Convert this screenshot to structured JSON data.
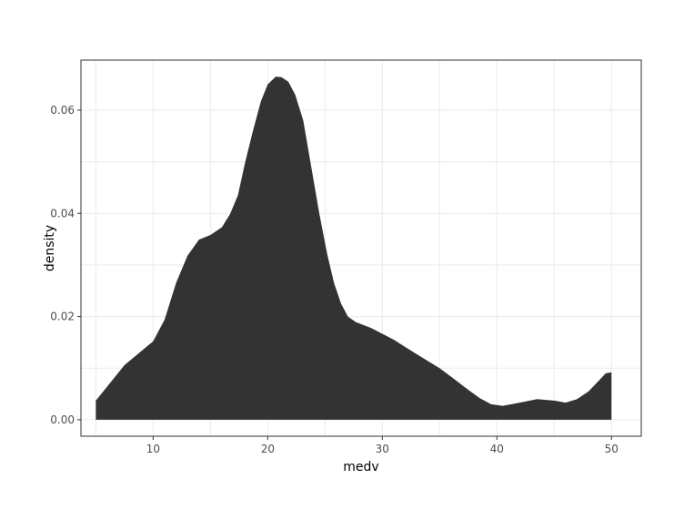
{
  "chart_data": {
    "type": "area",
    "title": "",
    "xlabel": "medv",
    "ylabel": "density",
    "xlim": [
      3.7,
      52.6
    ],
    "ylim": [
      -0.0032,
      0.0697
    ],
    "x_ticks": [
      10,
      20,
      30,
      40,
      50
    ],
    "x_tick_labels": [
      "10",
      "20",
      "30",
      "40",
      "50"
    ],
    "y_ticks": [
      0.0,
      0.02,
      0.04,
      0.06
    ],
    "y_tick_labels": [
      "0.00",
      "0.02",
      "0.04",
      "0.06"
    ],
    "grid": true,
    "legend": "none",
    "fill_color": "#333333",
    "series": [
      {
        "x": [
          5.0,
          7.5,
          10.0,
          11.0,
          12.0,
          13.0,
          14.0,
          15.0,
          16.0,
          16.7,
          17.4,
          18.0,
          18.7,
          19.4,
          20.0,
          20.7,
          21.2,
          21.8,
          22.4,
          23.1,
          23.8,
          24.5,
          25.2,
          25.8,
          26.4,
          27.0,
          27.7,
          29.0,
          31.0,
          33.0,
          35.0,
          36.2,
          37.5,
          38.5,
          39.5,
          40.5,
          42.0,
          43.5,
          45.0,
          46.0,
          47.0,
          48.0,
          49.0,
          49.5,
          50.0
        ],
        "y": [
          0.0037,
          0.0106,
          0.0152,
          0.0194,
          0.0265,
          0.0318,
          0.0349,
          0.0358,
          0.0373,
          0.0398,
          0.0435,
          0.0496,
          0.0559,
          0.0617,
          0.065,
          0.0665,
          0.0664,
          0.0655,
          0.063,
          0.058,
          0.049,
          0.04,
          0.032,
          0.0264,
          0.0225,
          0.02,
          0.0189,
          0.0178,
          0.0155,
          0.0127,
          0.01,
          0.008,
          0.0058,
          0.0042,
          0.003,
          0.0027,
          0.0033,
          0.004,
          0.0037,
          0.0033,
          0.004,
          0.0055,
          0.0078,
          0.009,
          0.0092
        ]
      }
    ]
  }
}
